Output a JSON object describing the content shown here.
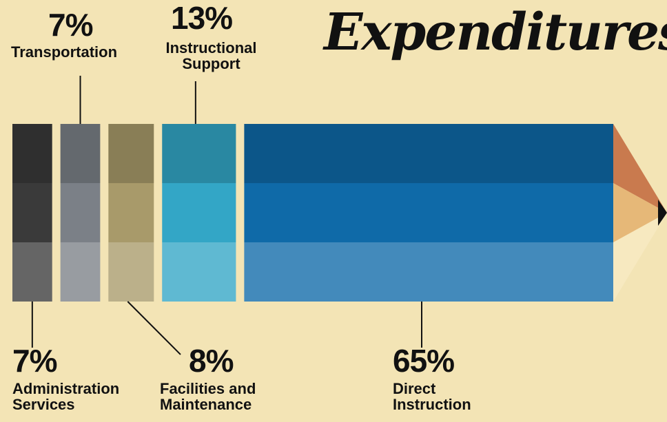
{
  "chart_data": {
    "type": "bar",
    "title": "Expenditures",
    "categories": [
      "Administration Services",
      "Transportation",
      "Facilities and Maintenance",
      "Instructional Support",
      "Direct Instruction"
    ],
    "values": [
      7,
      7,
      8,
      13,
      65
    ],
    "value_labels": [
      "7%",
      "7%",
      "8%",
      "13%",
      "65%"
    ],
    "colors": [
      "#3a3a3a",
      "#7b8087",
      "#a89a6a",
      "#33a6c6",
      "#0f6aa8"
    ]
  }
}
